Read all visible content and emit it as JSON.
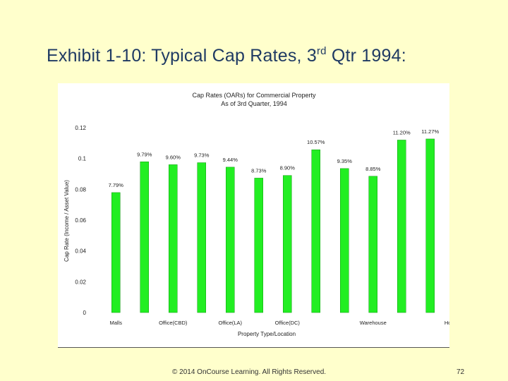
{
  "slide": {
    "title_main": "Exhibit 1-10: Typical Cap Rates, 3",
    "title_sup": "rd",
    "title_tail": " Qtr 1994:",
    "footer": "© 2014 OnCourse Learning. All Rights Reserved.",
    "page_number": "72"
  },
  "colors": {
    "bar": "#22ee22",
    "bar_stroke": "#119911",
    "background": "#ffffcc"
  },
  "chart_data": {
    "type": "bar",
    "title": "Cap Rates (OARs) for Commercial Property",
    "subtitle": "As of 3rd Quarter, 1994",
    "ylabel": "Cap Rate (Income / Asset Value)",
    "xlabel": "Property Type/Location",
    "ylim": [
      0,
      0.12
    ],
    "yticks": [
      0,
      0.02,
      0.04,
      0.06,
      0.08,
      0.1,
      0.12
    ],
    "ytick_labels": [
      "0",
      "0.02",
      "0.04",
      "0.06",
      "0.08",
      "0.1",
      "0.12"
    ],
    "x_tick_labels": [
      {
        "index": 0,
        "label": "Malls"
      },
      {
        "index": 2,
        "label": "Office(CBD)"
      },
      {
        "index": 4,
        "label": "Office(LA)"
      },
      {
        "index": 6,
        "label": "Office(DC)"
      },
      {
        "index": 9,
        "label": "Warehouse"
      },
      {
        "index": 12,
        "label": "Hotels(LUX)"
      }
    ],
    "values": [
      0.0779,
      0.0979,
      0.096,
      0.0973,
      0.0944,
      0.0873,
      0.089,
      0.1057,
      0.0935,
      0.0885,
      0.112,
      0.1127
    ],
    "data_labels": [
      "7.79%",
      "9.79%",
      "9.60%",
      "9.73%",
      "9.44%",
      "8.73%",
      "8.90%",
      "10.57%",
      "9.35%",
      "8.85%",
      "11.20%",
      "11.27%"
    ],
    "grid": false,
    "legend": "none"
  }
}
